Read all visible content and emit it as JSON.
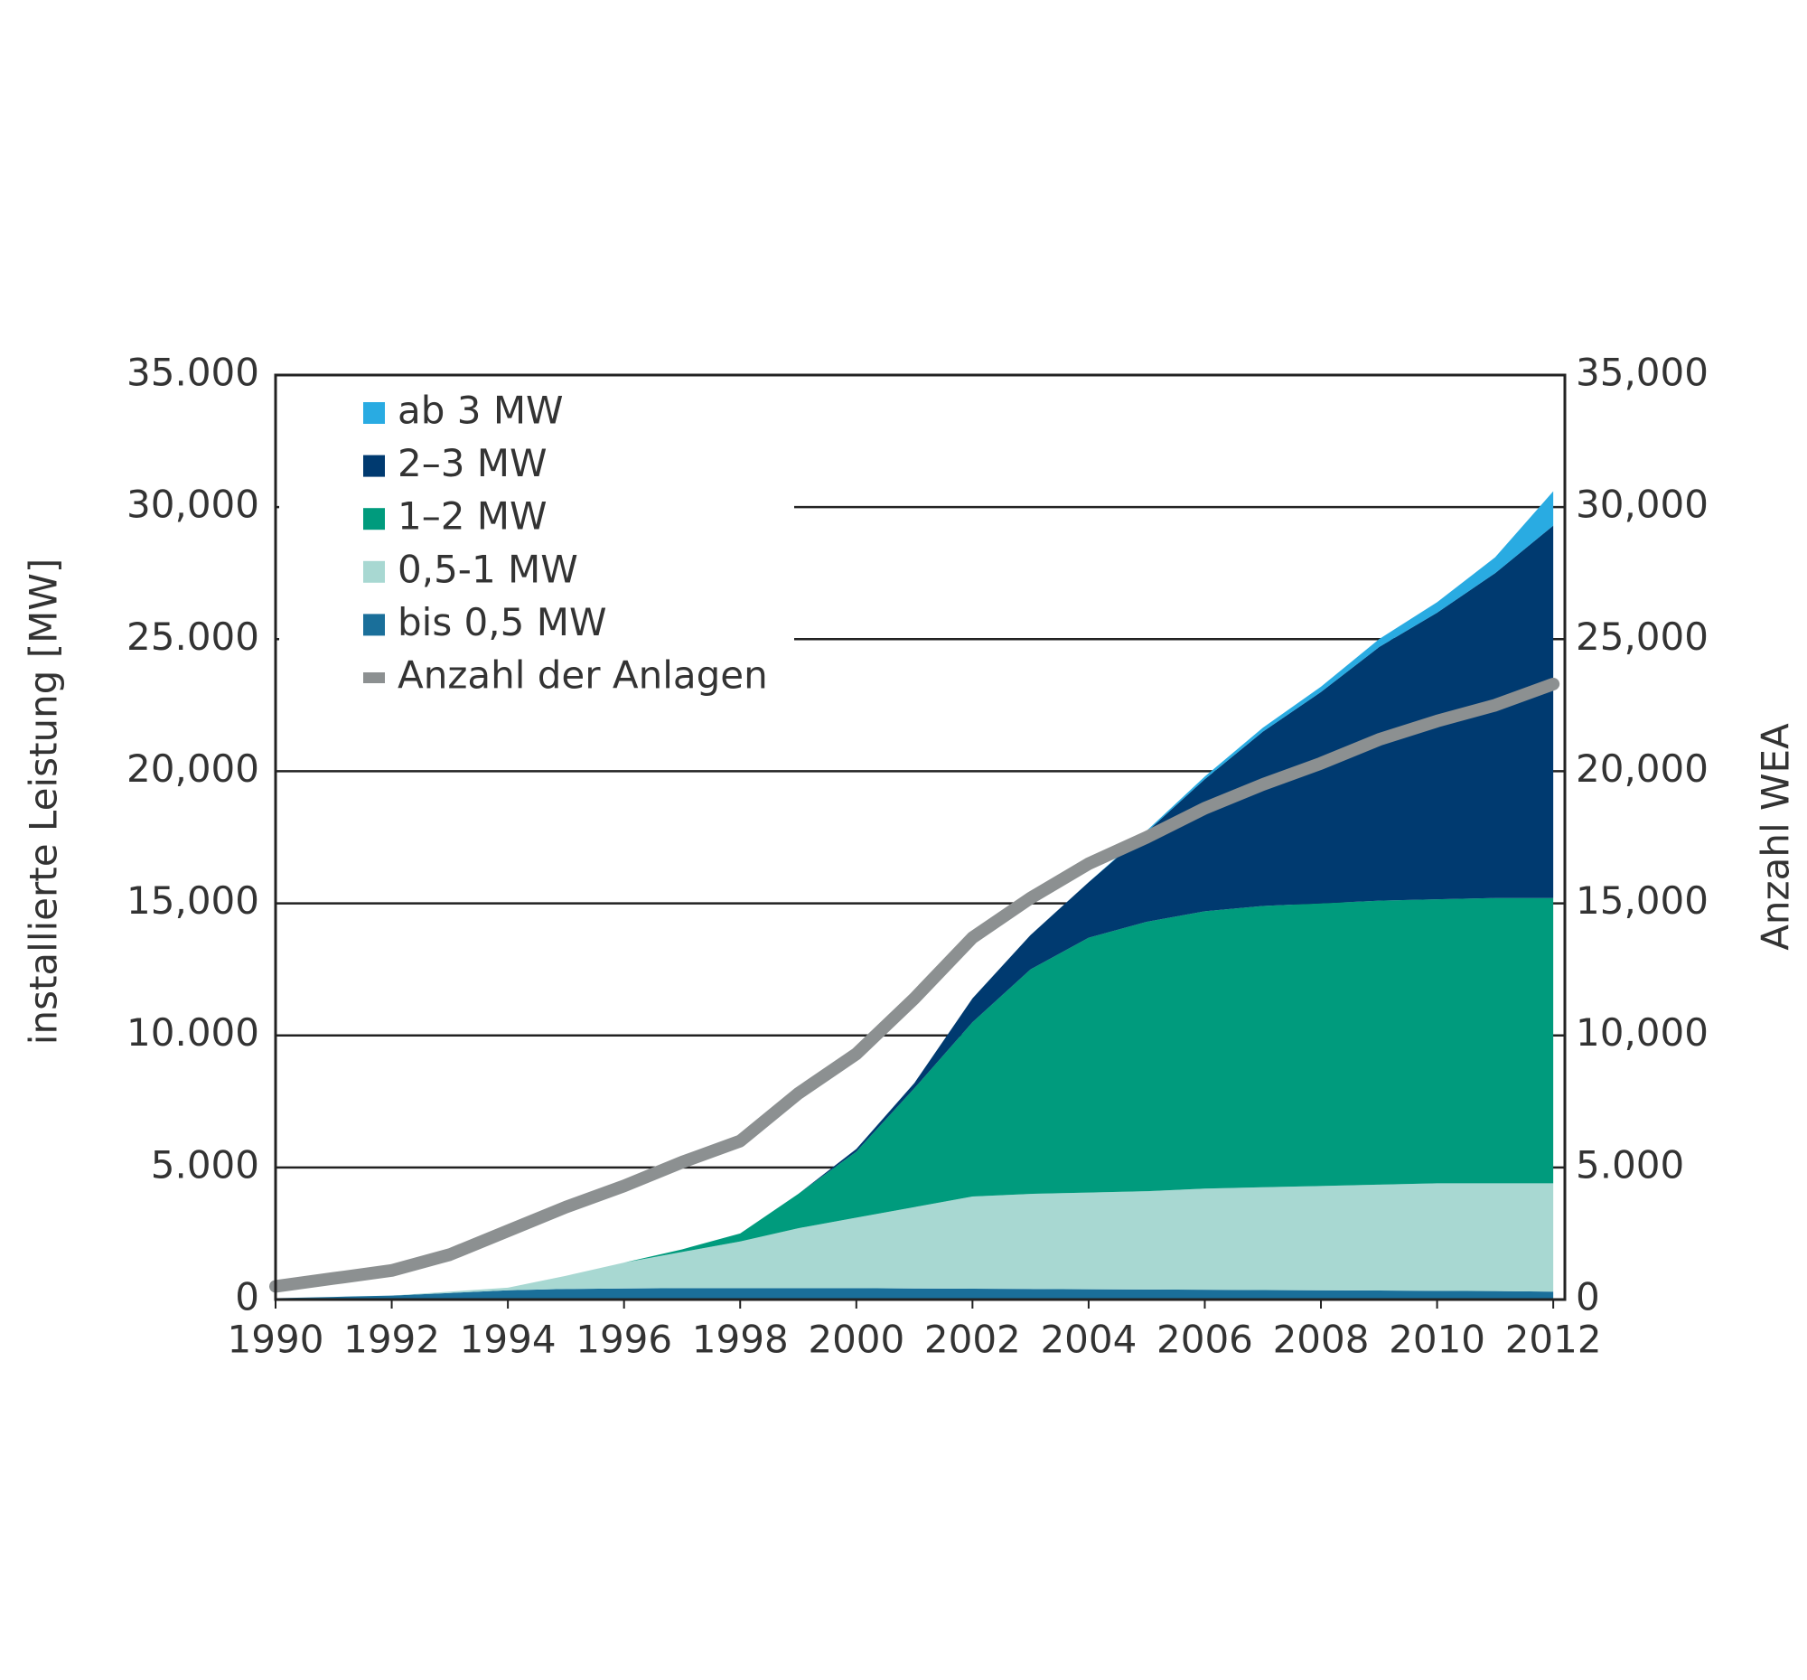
{
  "chart_data": {
    "type": "area",
    "stacked": true,
    "y_label": "installierte Leistung [MW]",
    "y2_label": "Anzahl WEA",
    "x": [
      1990,
      1991,
      1992,
      1993,
      1994,
      1995,
      1996,
      1997,
      1998,
      1999,
      2000,
      2001,
      2002,
      2003,
      2004,
      2005,
      2006,
      2007,
      2008,
      2009,
      2010,
      2011,
      2012
    ],
    "xlim": [
      1990,
      2012.2
    ],
    "xticks": [
      1990,
      1992,
      1994,
      1996,
      1998,
      2000,
      2002,
      2004,
      2006,
      2008,
      2010,
      2012
    ],
    "ylim": [
      0,
      35000
    ],
    "yticks": [
      {
        "value": 0,
        "label": "0"
      },
      {
        "value": 5000,
        "label": "5.000"
      },
      {
        "value": 10000,
        "label": "10.000"
      },
      {
        "value": 15000,
        "label": "15,000"
      },
      {
        "value": 20000,
        "label": "20,000"
      },
      {
        "value": 25000,
        "label": "25.000"
      },
      {
        "value": 30000,
        "label": "30,000"
      },
      {
        "value": 35000,
        "label": "35.000"
      }
    ],
    "y2lim": [
      0,
      35000
    ],
    "y2ticks": [
      {
        "value": 0,
        "label": "0"
      },
      {
        "value": 5000,
        "label": "5.000"
      },
      {
        "value": 10000,
        "label": "10,000"
      },
      {
        "value": 15000,
        "label": "15,000"
      },
      {
        "value": 20000,
        "label": "20,000"
      },
      {
        "value": 25000,
        "label": "25,000"
      },
      {
        "value": 30000,
        "label": "30,000"
      },
      {
        "value": 35000,
        "label": "35,000"
      }
    ],
    "grid": true,
    "legend": "upper left",
    "series": [
      {
        "name": "ab 3 MW",
        "color": "#29abe2",
        "values": [
          0,
          0,
          0,
          0,
          0,
          0,
          0,
          0,
          0,
          0,
          0,
          0,
          0,
          0,
          0,
          50,
          100,
          150,
          200,
          300,
          400,
          600,
          1300
        ]
      },
      {
        "name": "2–3 MW",
        "color": "#003a70",
        "values": [
          0,
          0,
          0,
          0,
          0,
          0,
          0,
          0,
          0,
          0,
          100,
          200,
          900,
          1300,
          2100,
          3400,
          5000,
          6600,
          8000,
          9600,
          10850,
          12300,
          14100
        ]
      },
      {
        "name": "1–2 MW",
        "color": "#009b7d",
        "values": [
          0,
          0,
          0,
          0,
          0,
          0,
          0,
          100,
          300,
          1300,
          2500,
          4500,
          6600,
          8500,
          9650,
          10200,
          10500,
          10650,
          10700,
          10750,
          10750,
          10800,
          10800
        ]
      },
      {
        "name": "0,5-1 MW",
        "color": "#a8d8d2",
        "values": [
          0,
          0,
          0,
          50,
          100,
          500,
          980,
          1370,
          1770,
          2270,
          2670,
          3080,
          3490,
          3600,
          3660,
          3720,
          3830,
          3890,
          3950,
          4010,
          4070,
          4080,
          4100
        ]
      },
      {
        "name": "bis 0,5 MW",
        "color": "#1a6f9a",
        "values": [
          50,
          100,
          150,
          250,
          350,
          400,
          420,
          430,
          430,
          430,
          430,
          420,
          410,
          400,
          390,
          380,
          370,
          360,
          350,
          340,
          330,
          320,
          300
        ]
      },
      {
        "name": "Anzahl der Anlagen",
        "color": "#8c9091",
        "type": "line",
        "axis": "y2",
        "values": [
          500,
          800,
          1100,
          1700,
          2600,
          3500,
          4300,
          5200,
          6000,
          7800,
          9300,
          11400,
          13700,
          15200,
          16500,
          17500,
          18600,
          19500,
          20300,
          21200,
          21900,
          22500,
          23300
        ]
      }
    ]
  }
}
